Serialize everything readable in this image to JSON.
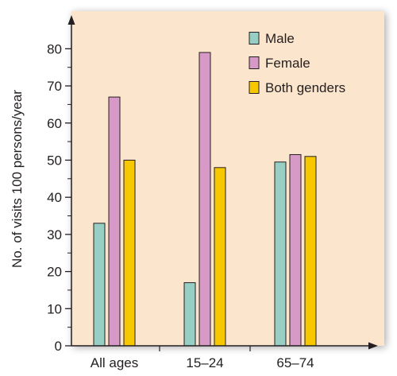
{
  "chart_data": {
    "type": "bar",
    "categories": [
      "All ages",
      "15–24",
      "65–74"
    ],
    "series": [
      {
        "name": "Male",
        "values": [
          33,
          17,
          49.5
        ]
      },
      {
        "name": "Female",
        "values": [
          67,
          79,
          51.5
        ]
      },
      {
        "name": "Both genders",
        "values": [
          50,
          48,
          51
        ]
      }
    ],
    "ylabel": "No. of visits 100 persons/year",
    "xlabel": "",
    "ylim": [
      0,
      85
    ],
    "yticks": [
      0,
      10,
      20,
      30,
      40,
      50,
      60,
      70,
      80
    ],
    "grid": false,
    "legend_position": "top-right",
    "colors": {
      "Male": "#98cfc4",
      "Female": "#d79ac7",
      "Both genders": "#f7c700",
      "plot_background": "#fce5cd",
      "axis": "#231f20",
      "bar_outline": "#231f20"
    }
  }
}
